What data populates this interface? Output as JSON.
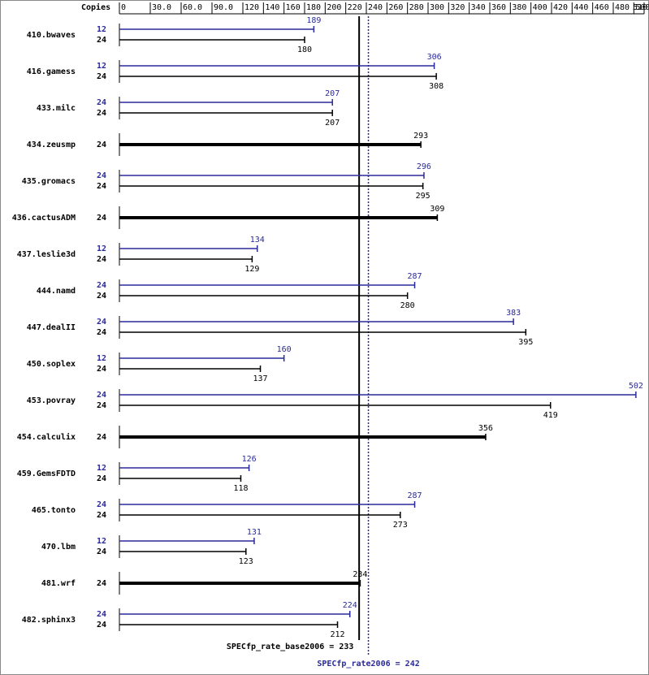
{
  "chart_data": {
    "type": "bar",
    "orientation": "horizontal",
    "copies_label": "Copies",
    "categories": [
      "410.bwaves",
      "416.gamess",
      "433.milc",
      "434.zeusmp",
      "435.gromacs",
      "436.cactusADM",
      "437.leslie3d",
      "444.namd",
      "447.dealII",
      "450.soplex",
      "453.povray",
      "454.calculix",
      "459.GemsFDTD",
      "465.tonto",
      "470.lbm",
      "481.wrf",
      "482.sphinx3"
    ],
    "series": [
      {
        "color": "#000000",
        "copies": [
          24,
          24,
          24,
          24,
          24,
          24,
          24,
          24,
          24,
          24,
          24,
          24,
          24,
          24,
          24,
          24,
          24
        ],
        "values": [
          180,
          308,
          207,
          293,
          295,
          309,
          129,
          280,
          395,
          137,
          419,
          356,
          118,
          273,
          123,
          234,
          212
        ]
      },
      {
        "color": "#2a2a9a",
        "copies": [
          12,
          12,
          24,
          null,
          24,
          null,
          12,
          24,
          24,
          12,
          24,
          null,
          12,
          24,
          12,
          null,
          24
        ],
        "values": [
          189,
          306,
          207,
          null,
          296,
          null,
          134,
          287,
          383,
          160,
          502,
          null,
          126,
          287,
          131,
          null,
          224
        ]
      }
    ],
    "xlim": [
      0,
      510
    ],
    "xticks": [
      0,
      {
        "value": 30,
        "label": "30.0"
      },
      {
        "value": 60,
        "label": "60.0"
      },
      {
        "value": 90,
        "label": "90.0"
      },
      120,
      140,
      160,
      180,
      200,
      220,
      240,
      260,
      280,
      300,
      320,
      340,
      360,
      380,
      400,
      420,
      440,
      460,
      480,
      500,
      510
    ],
    "reference_lines": [
      {
        "label": "SPECfp_rate_base2006 = 233",
        "value": 233,
        "color": "#000000",
        "style": "solid"
      },
      {
        "label": "SPECfp_rate2006 = 242",
        "value": 242,
        "color": "#2a2a9a",
        "style": "dotted"
      }
    ]
  }
}
